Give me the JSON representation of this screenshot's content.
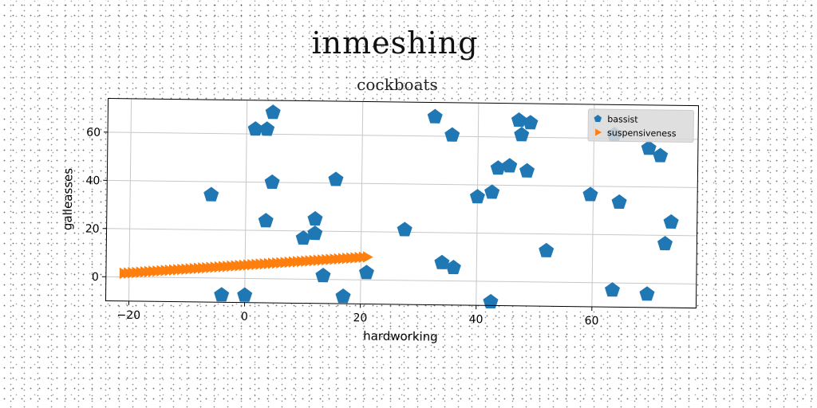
{
  "chart_data": {
    "type": "scatter",
    "title": "inmeshing",
    "subtitle": "cockboats",
    "xlabel": "hardworking",
    "ylabel": "galleasses",
    "xlim": [
      -24,
      78
    ],
    "ylim": [
      -10,
      74
    ],
    "xticks": [
      -20,
      0,
      20,
      40,
      60
    ],
    "yticks": [
      0,
      20,
      40,
      60
    ],
    "grid": true,
    "legend_position": "top-right",
    "series": [
      {
        "name": "bassist",
        "marker": "pentagon",
        "color": "#1f77b4",
        "points": [
          [
            4.5,
            69
          ],
          [
            1.5,
            62
          ],
          [
            3.5,
            62
          ],
          [
            4.5,
            40
          ],
          [
            -6,
            34.5
          ],
          [
            3.5,
            24
          ],
          [
            12,
            25
          ],
          [
            12,
            19
          ],
          [
            10,
            17
          ],
          [
            15.5,
            41.5
          ],
          [
            13.5,
            1.5
          ],
          [
            21,
            3
          ],
          [
            17,
            -7
          ],
          [
            -4,
            -7
          ],
          [
            0,
            -7
          ],
          [
            27.5,
            21
          ],
          [
            32.5,
            68
          ],
          [
            35.5,
            60.5
          ],
          [
            34,
            7.5
          ],
          [
            36,
            5.5
          ],
          [
            40,
            35
          ],
          [
            42.5,
            37
          ],
          [
            43.5,
            47
          ],
          [
            45.5,
            48
          ],
          [
            47,
            67
          ],
          [
            47.5,
            61
          ],
          [
            49,
            66
          ],
          [
            48.5,
            46
          ],
          [
            52,
            13
          ],
          [
            42.5,
            -8.5
          ],
          [
            59.5,
            36.5
          ],
          [
            64.5,
            33.5
          ],
          [
            63.5,
            -3
          ],
          [
            69.5,
            -4.5
          ],
          [
            69.5,
            56
          ],
          [
            71.5,
            53
          ],
          [
            72.5,
            16.5
          ],
          [
            73.5,
            25.5
          ],
          [
            63.5,
            61.5
          ]
        ]
      },
      {
        "name": "suspensiveness",
        "marker": "triangle-right",
        "color": "#ff7f0e",
        "x_range": [
          -21,
          21
        ],
        "y_range": [
          1.5,
          9.5
        ],
        "count": 60
      }
    ]
  }
}
